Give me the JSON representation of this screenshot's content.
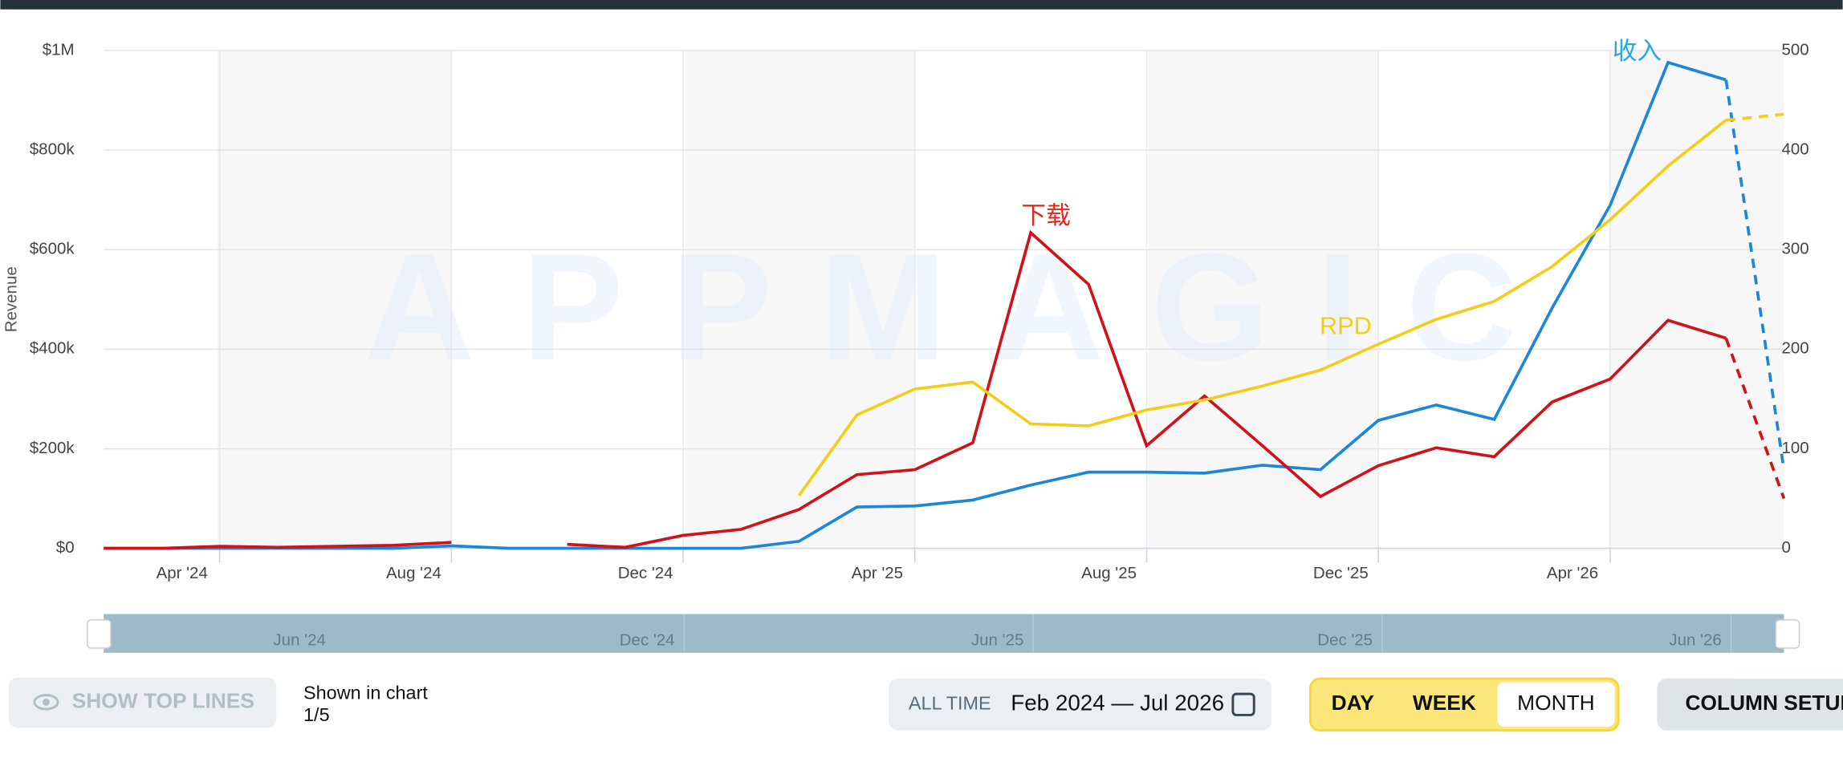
{
  "chart_data": {
    "type": "line",
    "y_axis_label": "Revenue",
    "watermark": "APPMAGIC",
    "categories": [
      null,
      null,
      "Apr '24",
      null,
      null,
      null,
      "Aug '24",
      null,
      null,
      null,
      "Dec '24",
      null,
      null,
      null,
      "Apr '25",
      null,
      null,
      null,
      "Aug '25",
      null,
      null,
      null,
      "Dec '25",
      null,
      null,
      null,
      "Apr '26",
      null,
      null,
      null
    ],
    "ylim": [
      0,
      1000000
    ],
    "yticks": [
      {
        "value": 0,
        "label": "$0"
      },
      {
        "value": 200000,
        "label": "$200k"
      },
      {
        "value": 400000,
        "label": "$400k"
      },
      {
        "value": 600000,
        "label": "$600k"
      },
      {
        "value": 800000,
        "label": "$800k"
      },
      {
        "value": 1000000,
        "label": "$1M"
      }
    ],
    "y2lim": [
      0,
      500
    ],
    "y2ticks": [
      0,
      100,
      200,
      300,
      400,
      500
    ],
    "grid": true,
    "dashed_after": 28,
    "series": [
      {
        "name": "收入",
        "color": "#1a87d8",
        "label_color": "#29a8e8",
        "values": [
          0,
          0,
          0,
          0,
          0,
          0,
          5000,
          0,
          0,
          0,
          0,
          0,
          14000,
          83000,
          85000,
          97000,
          127000,
          153000,
          153000,
          151000,
          167000,
          158000,
          257000,
          288000,
          259000,
          483000,
          689000,
          976000,
          941000,
          158000
        ]
      },
      {
        "name": "下载",
        "color": "#d0121b",
        "label_color": "#e8231c",
        "axis": "y2",
        "values": [
          0,
          0,
          2,
          1,
          2,
          3,
          6,
          null,
          4,
          1,
          13,
          19,
          39,
          74,
          79,
          106,
          317,
          265,
          103,
          153,
          103,
          52,
          83,
          101,
          92,
          147,
          170,
          229,
          211,
          50
        ]
      },
      {
        "name": "RPD",
        "color": "#f2cd1a",
        "label_color": "#f2cd1a",
        "axis": "y2",
        "values": [
          null,
          null,
          null,
          null,
          null,
          null,
          null,
          null,
          null,
          null,
          null,
          null,
          53,
          134,
          160,
          167,
          125,
          123,
          139,
          149,
          163,
          179,
          205,
          230,
          248,
          283,
          330,
          384,
          430,
          436
        ]
      }
    ]
  },
  "navigator": {
    "labels": [
      "Jun '24",
      "Dec '24",
      "Jun '25",
      "Dec '25",
      "Jun '26"
    ]
  },
  "controls": {
    "show_top_lines": "SHOW TOP LINES",
    "shown_in_chart": "Shown in chart",
    "shown_count": "1/5",
    "range_preset": "ALL TIME",
    "range": "Feb 2024 — Jul 2026",
    "granularity": [
      "DAY",
      "WEEK",
      "MONTH"
    ],
    "column_setup": "COLUMN SETUP"
  }
}
